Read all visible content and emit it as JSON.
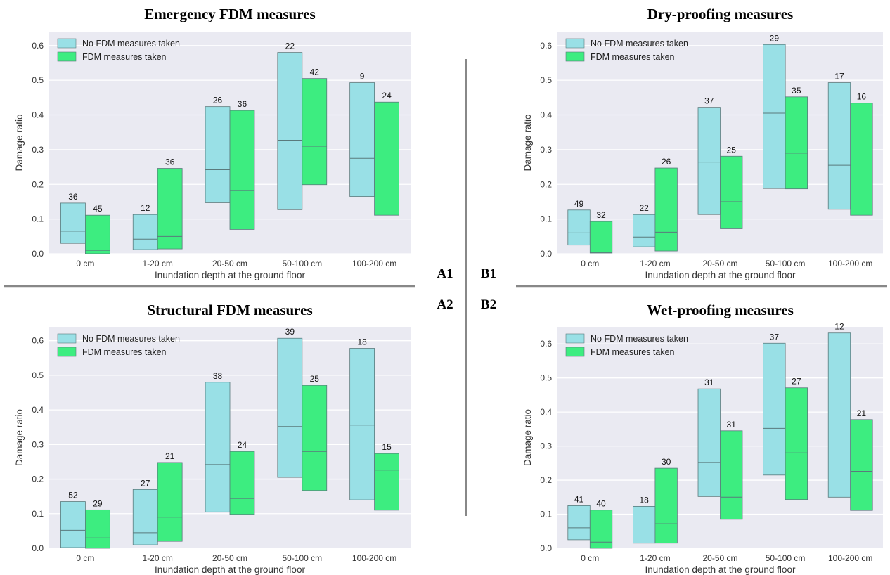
{
  "panel_labels": [
    "A1",
    "B1",
    "A2",
    "B2"
  ],
  "colors": {
    "no_measures": "#99e0e6",
    "measures": "#3ded80",
    "box_edge": "#5a7a7c",
    "plot_bg": "#eaeaf2",
    "grid": "#ffffff",
    "divider": "#888888"
  },
  "chart_data": [
    {
      "id": "A1",
      "type": "bar",
      "title": "Emergency FDM measures",
      "xlabel": "Inundation depth at the ground floor",
      "ylabel": "Damage ratio",
      "ylim": [
        0,
        0.64
      ],
      "yticks": [
        "0.0",
        "0.1",
        "0.2",
        "0.3",
        "0.4",
        "0.5",
        "0.6"
      ],
      "grid": true,
      "legend": "top-left",
      "categories": [
        "0 cm",
        "1-20 cm",
        "20-50 cm",
        "50-100 cm",
        "100-200 cm"
      ],
      "series": [
        {
          "name": "No FDM measures taken",
          "low": [
            0.03,
            0.012,
            0.147,
            0.127,
            0.165
          ],
          "high": [
            0.146,
            0.113,
            0.424,
            0.58,
            0.493
          ],
          "median": [
            0.065,
            0.042,
            0.242,
            0.327,
            0.275
          ],
          "counts": [
            "36",
            "12",
            "26",
            "22",
            "9"
          ]
        },
        {
          "name": "FDM measures taken",
          "low": [
            0.0,
            0.014,
            0.07,
            0.199,
            0.111
          ],
          "high": [
            0.111,
            0.246,
            0.413,
            0.505,
            0.437
          ],
          "median": [
            0.01,
            0.05,
            0.182,
            0.31,
            0.23
          ],
          "counts": [
            "45",
            "36",
            "36",
            "42",
            "24"
          ]
        }
      ]
    },
    {
      "id": "B1",
      "type": "bar",
      "title": "Dry-proofing measures",
      "xlabel": "Inundation depth at the ground floor",
      "ylabel": "Damage ratio",
      "ylim": [
        0,
        0.64
      ],
      "yticks": [
        "0.0",
        "0.1",
        "0.2",
        "0.3",
        "0.4",
        "0.5",
        "0.6"
      ],
      "grid": true,
      "legend": "top-left",
      "categories": [
        "0 cm",
        "1-20 cm",
        "20-50 cm",
        "50-100 cm",
        "100-200 cm"
      ],
      "series": [
        {
          "name": "No FDM measures taken",
          "low": [
            0.025,
            0.02,
            0.113,
            0.188,
            0.128
          ],
          "high": [
            0.126,
            0.113,
            0.422,
            0.603,
            0.493
          ],
          "median": [
            0.06,
            0.048,
            0.264,
            0.405,
            0.255
          ],
          "counts": [
            "49",
            "22",
            "37",
            "29",
            "17"
          ]
        },
        {
          "name": "FDM measures taken",
          "low": [
            0.002,
            0.008,
            0.072,
            0.187,
            0.111
          ],
          "high": [
            0.093,
            0.247,
            0.281,
            0.452,
            0.434
          ],
          "median": [
            0.004,
            0.062,
            0.15,
            0.29,
            0.23
          ],
          "counts": [
            "32",
            "26",
            "25",
            "35",
            "16"
          ]
        }
      ]
    },
    {
      "id": "A2",
      "type": "bar",
      "title": "Structural FDM measures",
      "xlabel": "Inundation depth at the ground floor",
      "ylabel": "Damage ratio",
      "ylim": [
        0,
        0.64
      ],
      "yticks": [
        "0.0",
        "0.1",
        "0.2",
        "0.3",
        "0.4",
        "0.5",
        "0.6"
      ],
      "grid": true,
      "legend": "top-left",
      "categories": [
        "0 cm",
        "1-20 cm",
        "20-50 cm",
        "50-100 cm",
        "100-200 cm"
      ],
      "series": [
        {
          "name": "No FDM measures taken",
          "low": [
            0.002,
            0.01,
            0.105,
            0.205,
            0.14
          ],
          "high": [
            0.135,
            0.17,
            0.48,
            0.607,
            0.578
          ],
          "median": [
            0.052,
            0.045,
            0.242,
            0.352,
            0.356
          ],
          "counts": [
            "52",
            "27",
            "38",
            "39",
            "18"
          ]
        },
        {
          "name": "FDM measures taken",
          "low": [
            0.0,
            0.02,
            0.098,
            0.167,
            0.11
          ],
          "high": [
            0.111,
            0.248,
            0.28,
            0.471,
            0.274
          ],
          "median": [
            0.03,
            0.09,
            0.144,
            0.28,
            0.226
          ],
          "counts": [
            "29",
            "21",
            "24",
            "25",
            "15"
          ]
        }
      ]
    },
    {
      "id": "B2",
      "type": "bar",
      "title": "Wet-proofing measures",
      "xlabel": "Inundation depth at the ground floor",
      "ylabel": "Damage ratio",
      "ylim": [
        0,
        0.65
      ],
      "yticks": [
        "0.0",
        "0.1",
        "0.2",
        "0.3",
        "0.4",
        "0.5",
        "0.6"
      ],
      "grid": true,
      "legend": "top-left",
      "categories": [
        "0 cm",
        "1-20 cm",
        "20-50 cm",
        "50-100 cm",
        "100-200 cm"
      ],
      "series": [
        {
          "name": "No FDM measures taken",
          "low": [
            0.025,
            0.015,
            0.152,
            0.215,
            0.15
          ],
          "high": [
            0.125,
            0.123,
            0.468,
            0.602,
            0.632
          ],
          "median": [
            0.06,
            0.03,
            0.252,
            0.352,
            0.356
          ],
          "counts": [
            "41",
            "18",
            "31",
            "37",
            "12"
          ]
        },
        {
          "name": "FDM measures taken",
          "low": [
            0.0,
            0.015,
            0.085,
            0.143,
            0.111
          ],
          "high": [
            0.112,
            0.235,
            0.345,
            0.471,
            0.378
          ],
          "median": [
            0.018,
            0.072,
            0.15,
            0.28,
            0.226
          ],
          "counts": [
            "40",
            "30",
            "31",
            "27",
            "21"
          ]
        }
      ]
    }
  ]
}
